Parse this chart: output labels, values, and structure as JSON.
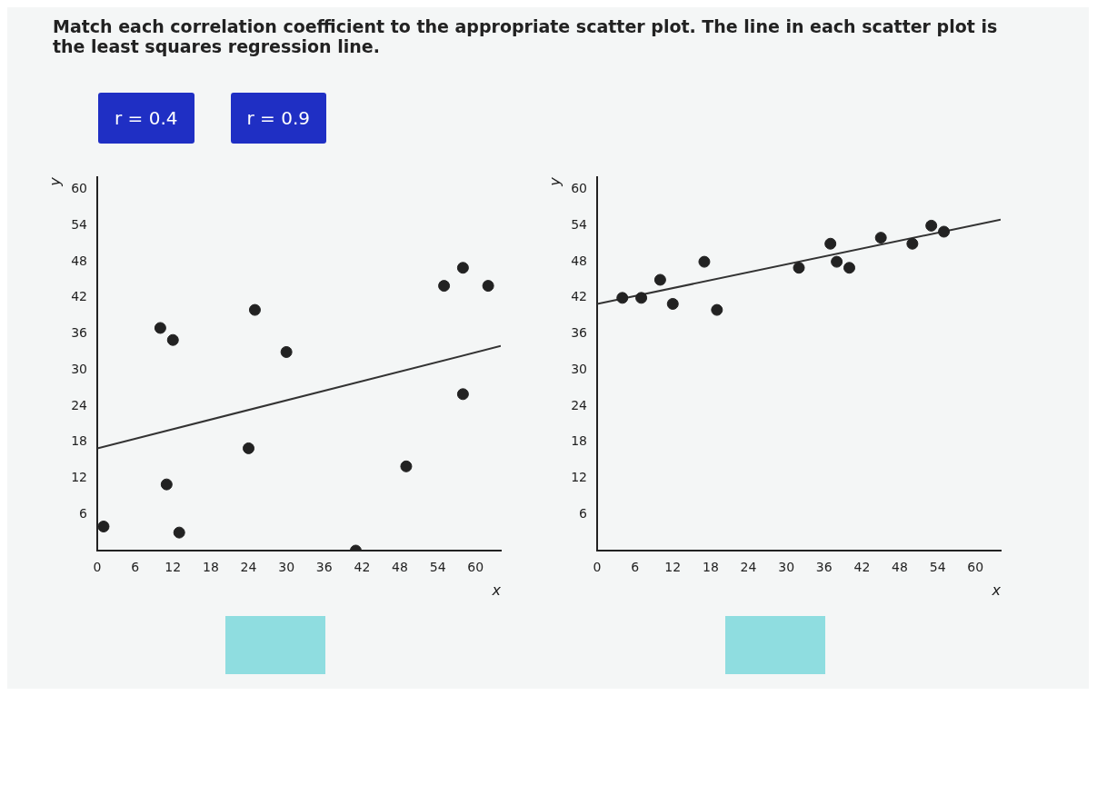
{
  "chart_data": [
    {
      "type": "other",
      "title": "Match each correlation coefficient to the appropriate scatter plot. The line in each scatter plot is the least squares regression line.",
      "annotations": [
        "r = 0.4",
        "r = 0.9"
      ]
    },
    {
      "type": "scatter",
      "xlabel": "x",
      "ylabel": "y",
      "xlim": [
        0,
        64
      ],
      "ylim": [
        0,
        62
      ],
      "xticks": [
        0,
        6,
        12,
        18,
        24,
        30,
        36,
        42,
        48,
        54,
        60
      ],
      "yticks": [
        6,
        12,
        18,
        24,
        30,
        36,
        42,
        48,
        54,
        60
      ],
      "grid": false,
      "legend": false,
      "series": [
        {
          "type": "scatter",
          "marker": "circle",
          "color": "#222222",
          "x": [
            1,
            13,
            11,
            10,
            12,
            24,
            25,
            30,
            41,
            49,
            58,
            55,
            58,
            62
          ],
          "values": [
            4,
            3,
            11,
            37,
            35,
            17,
            40,
            33,
            0,
            14,
            26,
            44,
            47,
            44
          ]
        },
        {
          "type": "line",
          "marker": "none",
          "color": "#333333",
          "x": [
            0,
            64
          ],
          "values": [
            17,
            34
          ]
        }
      ]
    },
    {
      "type": "scatter",
      "xlabel": "x",
      "ylabel": "y",
      "xlim": [
        0,
        64
      ],
      "ylim": [
        0,
        62
      ],
      "xticks": [
        0,
        6,
        12,
        18,
        24,
        30,
        36,
        42,
        48,
        54,
        60
      ],
      "yticks": [
        6,
        12,
        18,
        24,
        30,
        36,
        42,
        48,
        54,
        60
      ],
      "grid": false,
      "legend": false,
      "series": [
        {
          "type": "scatter",
          "marker": "circle",
          "color": "#222222",
          "x": [
            4,
            7,
            10,
            12,
            17,
            19,
            32,
            37,
            38,
            40,
            45,
            50,
            53,
            55
          ],
          "values": [
            42,
            42,
            45,
            41,
            48,
            40,
            47,
            51,
            48,
            47,
            52,
            51,
            54,
            53
          ]
        },
        {
          "type": "line",
          "marker": "none",
          "color": "#333333",
          "x": [
            0,
            64
          ],
          "values": [
            41,
            55
          ]
        }
      ]
    }
  ]
}
